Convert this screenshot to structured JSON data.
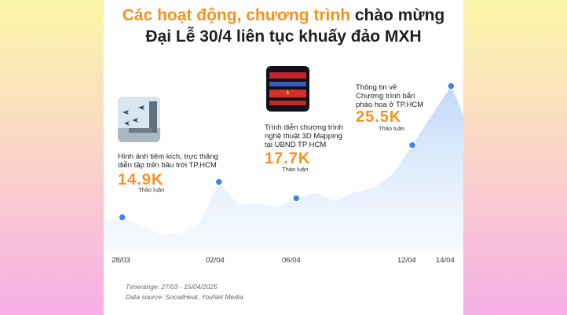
{
  "title": {
    "line1_accent": "Các hoạt động, chương trình",
    "line1_rest": "chào mừng",
    "line2": "Đại Lễ 30/4 liên tục khuấy đảo MXH"
  },
  "annotations": [
    {
      "text": "Hình ảnh tiêm kích, trực thăng\ndiễn tập trên bầu trời TP.HCM",
      "value": "14.9K",
      "unit": "Thảo luận",
      "image_icon": "fighter-jets-photo"
    },
    {
      "text": "Trình diễn chương trình\nnghệ thuật 3D Mapping\ntại UBND TP HCM",
      "value": "17.7K",
      "unit": "Thảo luận",
      "image_icon": "3d-mapping-photo"
    },
    {
      "text": "Thông tin về\nChương trình bắn\npháo hoa ở TP.HCM",
      "value": "25.5K",
      "unit": "Thảo luận"
    }
  ],
  "footer": {
    "timerange": "Timerange: 27/03 - 15/04/2025",
    "source": "Data source: SocialHeat, YouNet Media"
  },
  "colors": {
    "accent": "#f7921e",
    "line": "#4f91f2",
    "area_top": "#bcd6f8",
    "dot": "#3f83ef"
  },
  "chart_data": {
    "type": "area",
    "x": [
      "27/03",
      "28/03",
      "29/03",
      "30/03",
      "31/03",
      "01/04",
      "02/04",
      "03/04",
      "04/04",
      "05/04",
      "06/04",
      "07/04",
      "08/04",
      "09/04",
      "10/04",
      "11/04",
      "12/04",
      "13/04",
      "14/04",
      "15/04"
    ],
    "tick_labels": [
      "28/03",
      "02/04",
      "06/04",
      "12/04",
      "14/04"
    ],
    "values": [
      14.2,
      14.9,
      13.6,
      12.4,
      12.6,
      14.0,
      20.1,
      16.7,
      16.9,
      16.4,
      17.7,
      18.4,
      17.3,
      18.6,
      19.2,
      21.3,
      25.5,
      29.9,
      34.2,
      27.5
    ],
    "highlights": [
      {
        "x": "28/03",
        "value": 14.9
      },
      {
        "x": "02/04",
        "value": 20.1
      },
      {
        "x": "06/04",
        "value": 17.7
      },
      {
        "x": "12/04",
        "value": 25.5
      },
      {
        "x": "14/04",
        "value": 34.2
      }
    ],
    "xlabel": "",
    "ylabel": "",
    "grid": false,
    "legend": "none"
  }
}
